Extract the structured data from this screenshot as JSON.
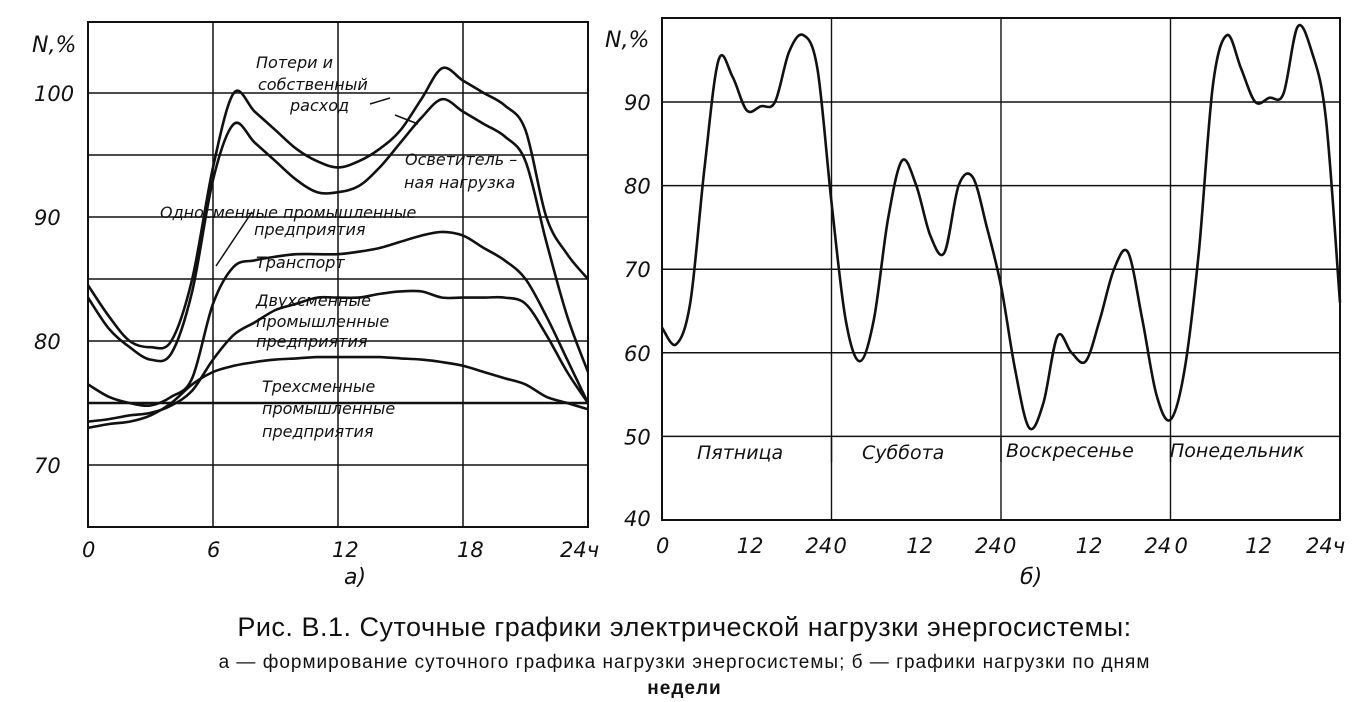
{
  "chart_data": [
    {
      "type": "line",
      "panel_label": "а)",
      "ylabel": "N,%",
      "xlim": [
        0,
        24
      ],
      "ylim": [
        66,
        103
      ],
      "x_ticks": [
        "0",
        "6",
        "12",
        "18",
        "24ч"
      ],
      "y_ticks": [
        "70",
        "80",
        "90",
        "100"
      ],
      "grid": true,
      "series": [
        {
          "name": "Потери и собственный расход",
          "x": [
            0,
            1,
            2,
            3,
            4,
            5,
            6,
            7,
            8,
            9,
            10,
            11,
            12,
            13,
            14,
            15,
            16,
            17,
            18,
            19,
            20,
            21,
            22,
            23,
            24
          ],
          "y": [
            84.5,
            82,
            80,
            79.5,
            80,
            85,
            94,
            100,
            98.5,
            97,
            95.5,
            94.5,
            94,
            94.5,
            95.5,
            97,
            99.5,
            102,
            101,
            100,
            99,
            97,
            90,
            87,
            85
          ]
        },
        {
          "name": "Осветительная нагрузка",
          "x": [
            0,
            1,
            2,
            3,
            4,
            5,
            6,
            7,
            8,
            9,
            10,
            11,
            12,
            13,
            14,
            15,
            16,
            17,
            18,
            19,
            20,
            21,
            22,
            23,
            24
          ],
          "y": [
            83.5,
            81,
            79.5,
            78.5,
            79,
            84,
            93,
            97.5,
            96,
            94.5,
            93,
            92,
            92,
            92.5,
            94,
            96,
            98,
            99.5,
            98.5,
            97.5,
            96.5,
            94.5,
            88,
            82,
            77.5
          ]
        },
        {
          "name": "Односменные промышленные предприятия",
          "x": [
            0,
            1,
            2,
            3,
            4,
            5,
            6,
            7,
            8,
            9,
            10,
            11,
            12,
            13,
            14,
            15,
            16,
            17,
            18,
            19,
            20,
            21,
            22,
            23,
            24
          ],
          "y": [
            76.5,
            75.5,
            75,
            74.8,
            75.5,
            77,
            83,
            86,
            86.5,
            86.8,
            87,
            87,
            87,
            87.2,
            87.5,
            88,
            88.5,
            88.8,
            88.5,
            87.5,
            86.5,
            85,
            82,
            78.5,
            75
          ]
        },
        {
          "name": "Транспорт",
          "x": [
            0,
            1,
            2,
            3,
            4,
            5,
            6,
            7,
            8,
            9,
            10,
            11,
            12,
            13,
            14,
            15,
            16,
            17,
            18,
            19,
            20,
            21,
            22,
            23,
            24
          ],
          "y": [
            73.5,
            73.7,
            74,
            74.2,
            74.8,
            76,
            78.5,
            80.5,
            81.5,
            82.5,
            83,
            83.5,
            83.5,
            83.5,
            83.8,
            84,
            84,
            83.5,
            83.5,
            83.5,
            83.5,
            83,
            80.5,
            77.5,
            75
          ]
        },
        {
          "name": "Двухсменные промышленные предприятия",
          "x": [
            0,
            1,
            2,
            3,
            4,
            5,
            6,
            7,
            8,
            9,
            10,
            11,
            12,
            13,
            14,
            15,
            16,
            17,
            18,
            19,
            20,
            21,
            22,
            23,
            24
          ],
          "y": [
            75,
            75,
            75,
            75,
            75,
            75,
            75,
            75,
            75,
            75,
            75,
            75,
            75,
            75,
            75,
            75,
            75,
            75,
            75,
            75,
            75,
            75,
            75,
            75,
            75
          ]
        },
        {
          "name": "Трехсменные промышленные предприятия",
          "x": [
            0,
            1,
            2,
            3,
            4,
            5,
            6,
            7,
            8,
            9,
            10,
            11,
            12,
            13,
            14,
            15,
            16,
            17,
            18,
            19,
            20,
            21,
            22,
            23,
            24
          ],
          "y": [
            73,
            73.3,
            73.5,
            74,
            75,
            76.5,
            77.5,
            78,
            78.3,
            78.5,
            78.6,
            78.7,
            78.7,
            78.7,
            78.7,
            78.6,
            78.5,
            78.3,
            78,
            77.5,
            77,
            76.5,
            75.5,
            75,
            74.5
          ]
        }
      ]
    },
    {
      "type": "line",
      "panel_label": "б)",
      "ylabel": "N,%",
      "xlim": [
        0,
        96
      ],
      "ylim": [
        40,
        100
      ],
      "x_ticks": [
        "0",
        "12",
        "24",
        "0",
        "12",
        "24",
        "0",
        "12",
        "24",
        "0",
        "12",
        "24ч"
      ],
      "y_ticks": [
        "40",
        "50",
        "60",
        "70",
        "80",
        "90"
      ],
      "day_labels": [
        "Пятница",
        "Суббота",
        "Воскресенье",
        "Понедельник"
      ],
      "grid": true,
      "series": [
        {
          "x": [
            0,
            2,
            4,
            6,
            8,
            10,
            12,
            14,
            16,
            18,
            20,
            22,
            24,
            26,
            28,
            30,
            32,
            34,
            36,
            38,
            40,
            42,
            44,
            46,
            48,
            50,
            52,
            54,
            56,
            58,
            60,
            62,
            64,
            66,
            68,
            70,
            72,
            74,
            76,
            78,
            80,
            82,
            84,
            86,
            88,
            90,
            92,
            94,
            96
          ],
          "y": [
            63,
            61,
            66,
            82,
            95,
            93,
            89,
            89.5,
            90,
            96,
            98,
            94,
            78,
            64,
            59,
            64,
            76,
            83,
            80,
            74,
            72,
            80,
            81,
            75,
            68,
            58,
            51,
            54,
            62,
            60,
            59,
            64,
            70,
            72,
            64,
            55,
            52,
            58,
            72,
            92,
            98,
            94,
            90,
            90.5,
            91,
            99,
            96,
            88,
            66
          ]
        }
      ]
    }
  ],
  "panel_a": {
    "curve_labels": {
      "losses_1": "Потери и",
      "losses_2": "собственный",
      "losses_3": "расход",
      "lighting_1": "Осветитель –",
      "lighting_2": "ная нагрузка",
      "single_1": "Односменные промышленные",
      "single_2": "предприятия",
      "transport": "Транспорт",
      "double_1": "Двухсменные",
      "double_2": "промышленные",
      "double_3": "предприятия",
      "triple_1": "Трехсменные",
      "triple_2": "промышленные",
      "triple_3": "предприятия"
    }
  },
  "caption": {
    "title": "Рис. В.1. Суточные графики электрической нагрузки энергосистемы:",
    "line2": "а — формирование суточного графика нагрузки энергосистемы; б — графики нагрузки по дням",
    "line3": "недели"
  },
  "colors": {
    "ink": "#111111",
    "paper": "#ffffff"
  }
}
